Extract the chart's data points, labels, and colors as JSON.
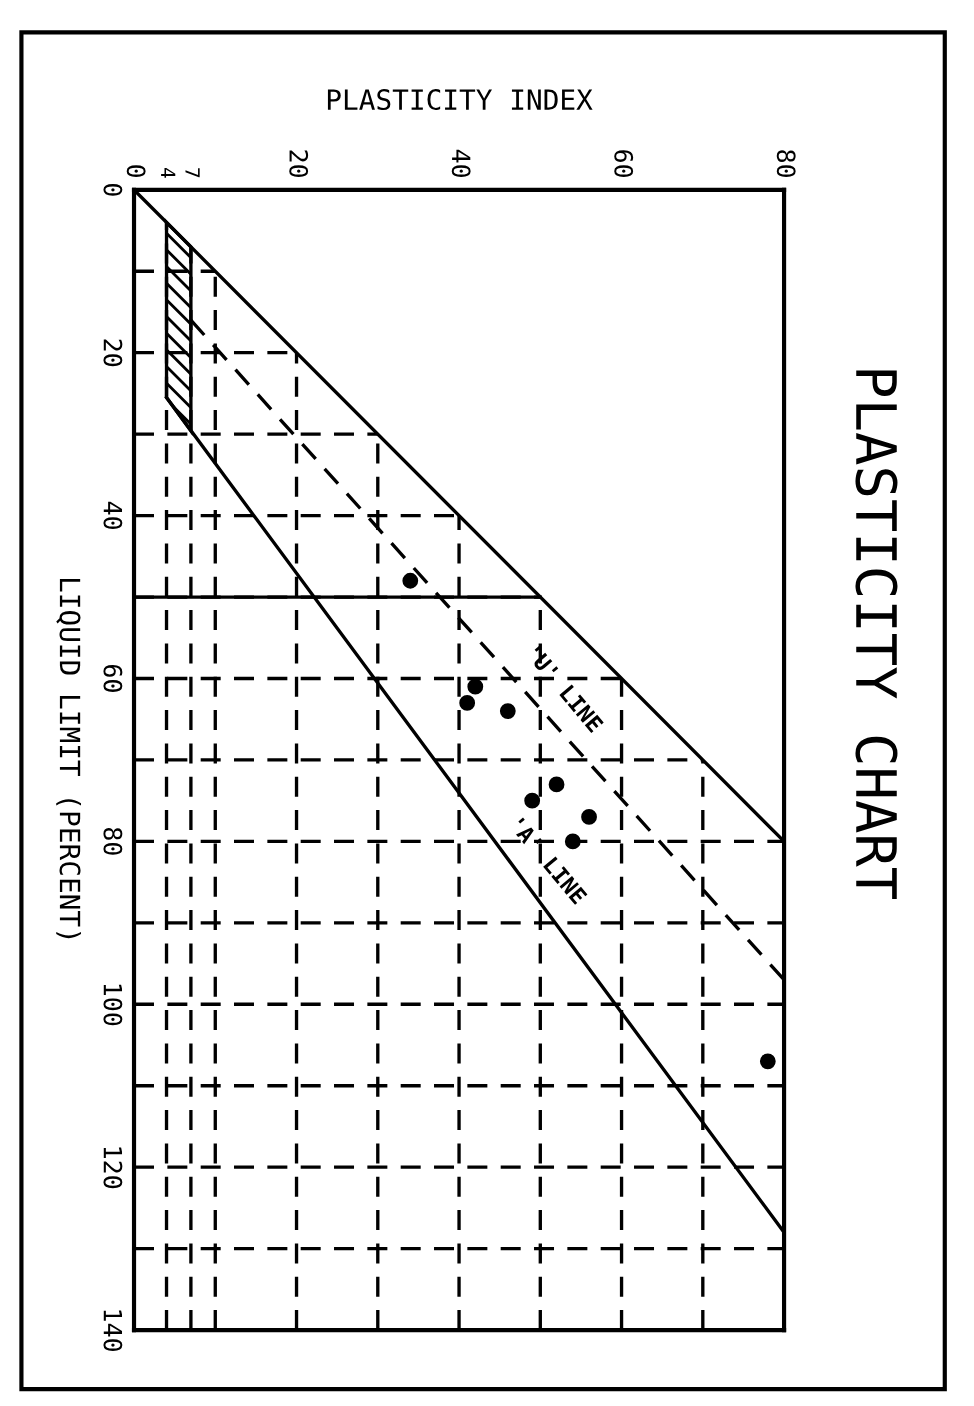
{
  "chart_data": {
    "type": "line",
    "title": "PLASTICITY CHART",
    "xlabel": "PLASTICITY INDEX",
    "ylabel": "LIQUID LIMIT (PERCENT)",
    "xlim": [
      0,
      80
    ],
    "ylim": [
      140,
      0
    ],
    "xticks": [
      0,
      4,
      7,
      {
        "value": 10,
        "label": null
      },
      20,
      {
        "value": 30,
        "label": null
      },
      40,
      {
        "value": 50,
        "label": null
      },
      60,
      {
        "value": 70,
        "label": null
      },
      80
    ],
    "yticks": [
      0,
      {
        "value": 10,
        "label": null
      },
      20,
      {
        "value": 30,
        "label": null
      },
      40,
      {
        "value": 50,
        "label": null
      },
      60,
      {
        "value": 70,
        "label": null
      },
      80,
      {
        "value": 90,
        "label": null
      },
      100,
      {
        "value": 110,
        "label": null
      },
      120,
      {
        "value": 130,
        "label": null
      },
      140
    ],
    "grid": true,
    "legend": false,
    "series": [
      {
        "color": "#000000",
        "line_style": "solid",
        "x": [
          0,
          80
        ],
        "values": [
          0,
          80
        ]
      },
      {
        "color": "#000000",
        "line_style": "dashed",
        "x": [
          7,
          80
        ],
        "values": [
          16,
          97
        ]
      },
      {
        "color": "#000000",
        "line_style": "solid",
        "x": [
          4,
          80
        ],
        "values": [
          25.5,
          128
        ]
      },
      {
        "color": "#000000",
        "line_style": "solid",
        "x": [
          0,
          50
        ],
        "values": [
          50,
          50
        ]
      },
      {
        "type": "area",
        "color": "#000000",
        "x": [
          4,
          7,
          7,
          4
        ],
        "values": [
          4,
          7,
          29.6,
          25.5
        ]
      },
      {
        "type": "scatter",
        "color": "#000000",
        "marker": "circle",
        "x": [
          34,
          42,
          41,
          46,
          52,
          49,
          56,
          54,
          78
        ],
        "values": [
          48,
          61,
          63,
          64,
          73,
          75,
          77,
          80,
          107
        ]
      }
    ],
    "annotations": [
      {
        "text": "'U' LINE",
        "x": 50,
        "y": 63.7
      },
      {
        "text": "'A' LINE",
        "x": 48,
        "y": 84.8
      }
    ]
  }
}
